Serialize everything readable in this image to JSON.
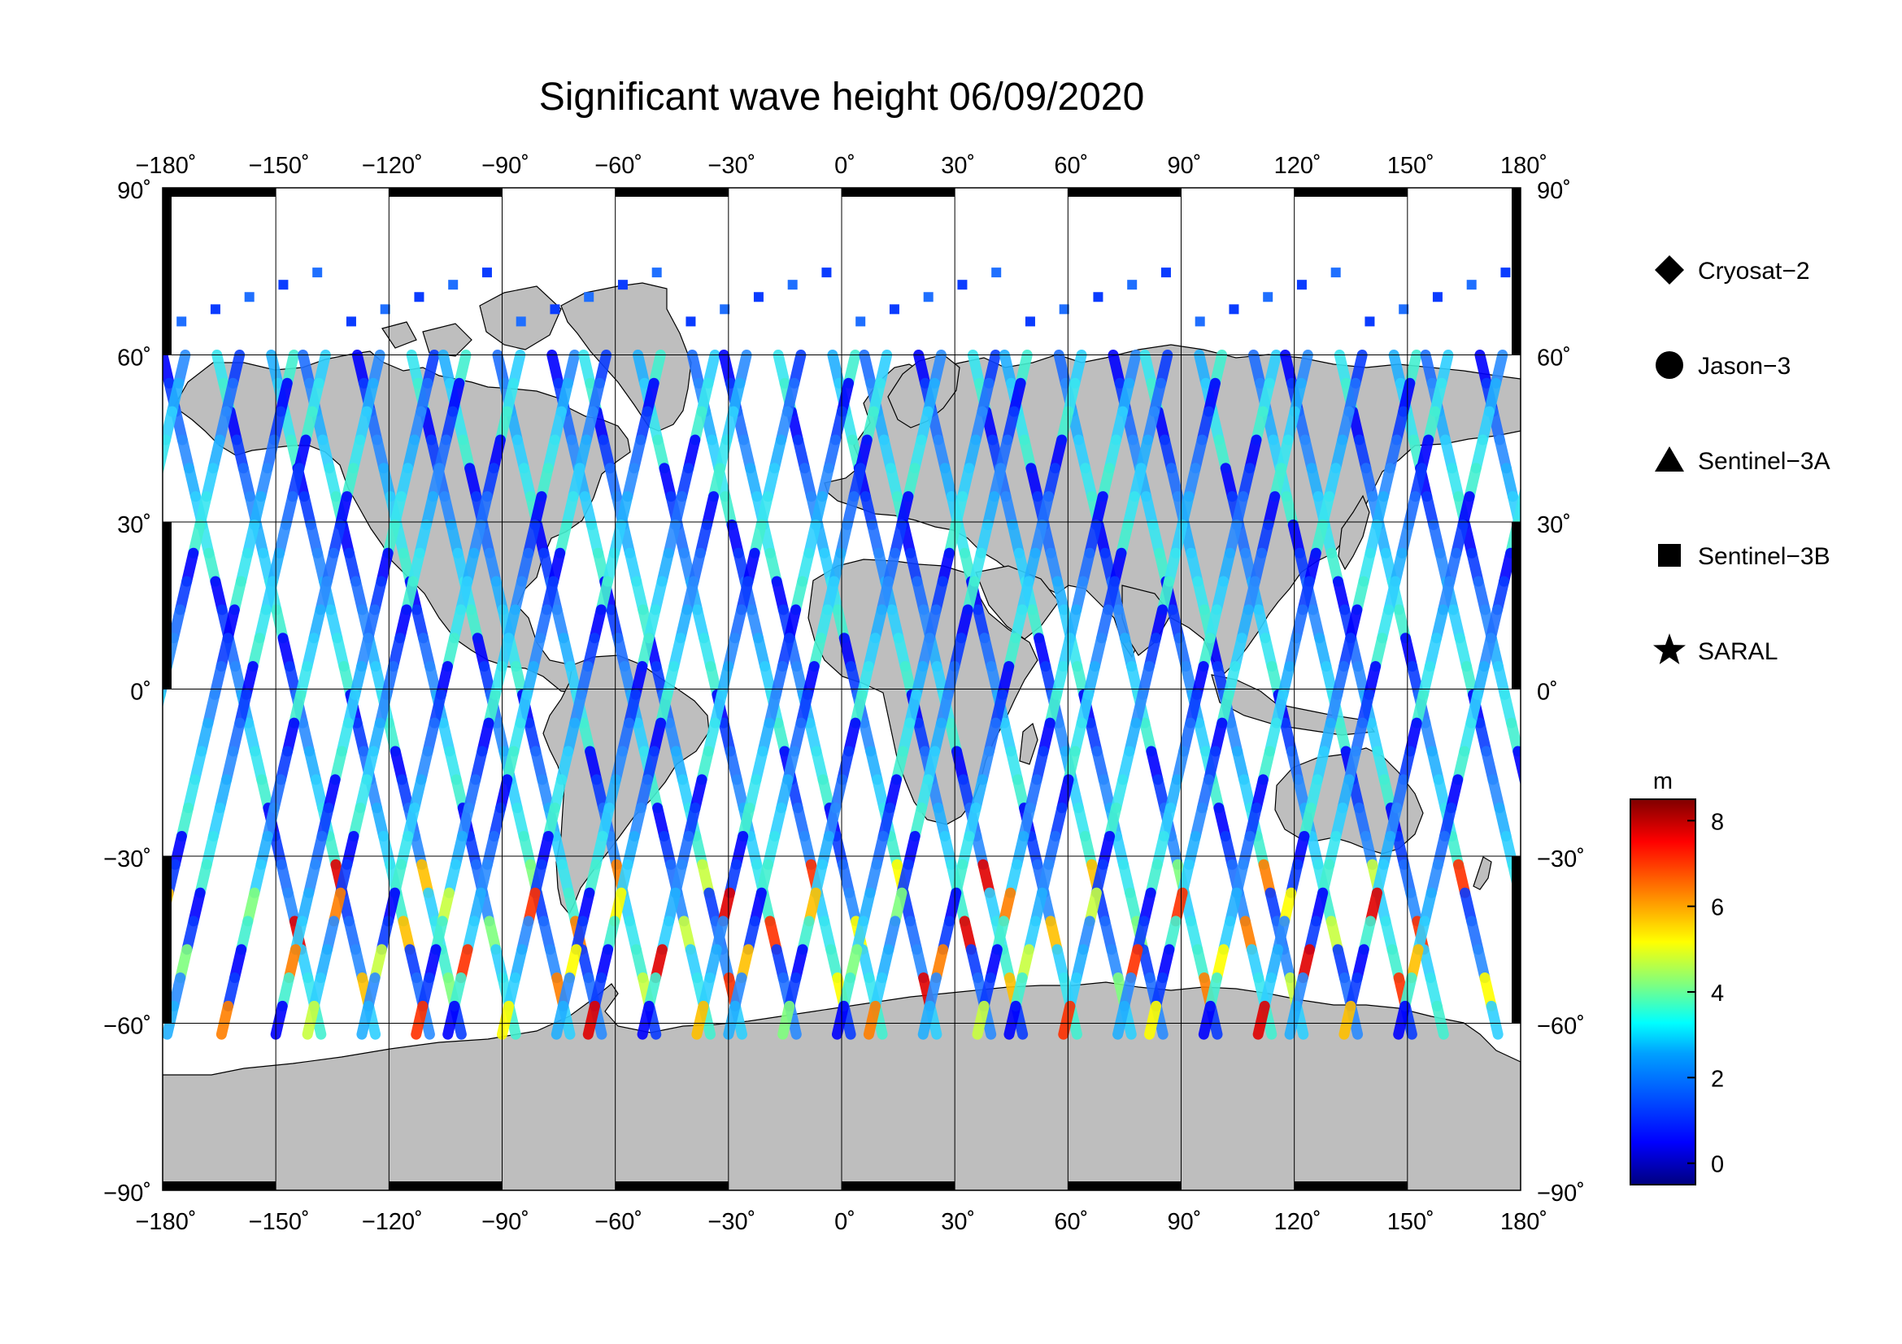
{
  "title": "Significant wave height 06/09/2020",
  "map": {
    "lon_ticks": [
      "−180˚",
      "−150˚",
      "−120˚",
      "−90˚",
      "−60˚",
      "−30˚",
      "0˚",
      "30˚",
      "60˚",
      "90˚",
      "120˚",
      "150˚",
      "180˚"
    ],
    "lat_ticks": [
      "90˚",
      "60˚",
      "30˚",
      "0˚",
      "−30˚",
      "−60˚",
      "−90˚"
    ],
    "lon_values": [
      -180,
      -150,
      -120,
      -90,
      -60,
      -30,
      0,
      30,
      60,
      90,
      120,
      150,
      180
    ],
    "lat_values": [
      90,
      60,
      30,
      0,
      -30,
      -60,
      -90
    ],
    "land_color": "#bebebe",
    "grid": true
  },
  "legend": {
    "items": [
      {
        "label": "Cryosat−2",
        "marker": "diamond"
      },
      {
        "label": "Jason−3",
        "marker": "circle"
      },
      {
        "label": "Sentinel−3A",
        "marker": "triangle"
      },
      {
        "label": "Sentinel−3B",
        "marker": "square"
      },
      {
        "label": "SARAL",
        "marker": "star"
      }
    ]
  },
  "colorbar": {
    "unit": "m",
    "min": -0.5,
    "max": 8.5,
    "ticks": [
      {
        "value": 8,
        "label": "8"
      },
      {
        "value": 6,
        "label": "6"
      },
      {
        "value": 4,
        "label": "4"
      },
      {
        "value": 2,
        "label": "2"
      },
      {
        "value": 0,
        "label": "0"
      }
    ],
    "colors": [
      "#00007f",
      "#0000ff",
      "#007fff",
      "#00ffff",
      "#7fff7f",
      "#ffff00",
      "#ff7f00",
      "#ff0000",
      "#7f0000"
    ]
  }
}
